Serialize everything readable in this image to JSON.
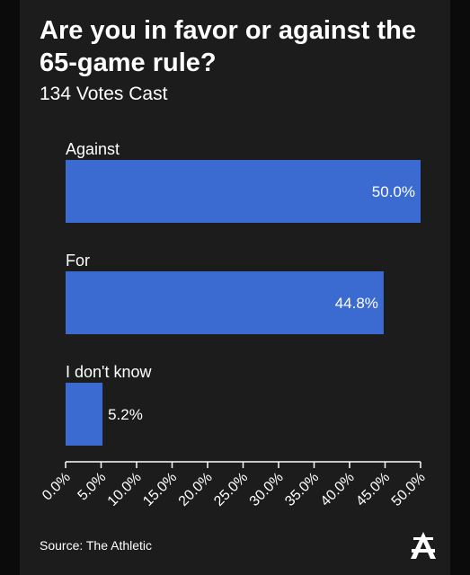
{
  "header": {
    "title": "Are you in favor or against the 65-game rule?",
    "subtitle": "134 Votes Cast"
  },
  "footer": {
    "source": "Source: The Athletic",
    "logo_icon": "athletic-a-logo-icon"
  },
  "colors": {
    "background": "#1c1c1c",
    "bar": "#3b6bd0",
    "text": "#ffffff"
  },
  "chart_data": {
    "type": "bar",
    "orientation": "horizontal",
    "categories": [
      "Against",
      "For",
      "I don't know"
    ],
    "values": [
      50.0,
      44.8,
      5.2
    ],
    "value_labels": [
      "50.0%",
      "44.8%",
      "5.2%"
    ],
    "xlim": [
      0,
      50
    ],
    "x_ticks": [
      "0.0%",
      "5.0%",
      "10.0%",
      "15.0%",
      "20.0%",
      "25.0%",
      "30.0%",
      "35.0%",
      "40.0%",
      "45.0%",
      "50.0%"
    ],
    "grid": false,
    "legend": "none"
  }
}
